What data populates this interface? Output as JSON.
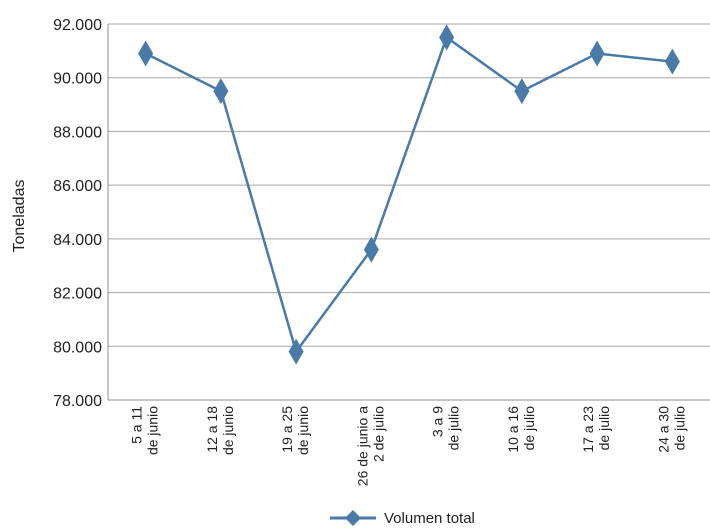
{
  "chart_data": {
    "type": "line",
    "ylabel": "Toneladas",
    "ylim": [
      78000,
      92000
    ],
    "yticks": [
      78000,
      80000,
      82000,
      84000,
      86000,
      88000,
      90000,
      92000
    ],
    "yticklabels": [
      "78.000",
      "80.000",
      "82.000",
      "84.000",
      "86.000",
      "88.000",
      "90.000",
      "92.000"
    ],
    "grid": true,
    "categories": [
      [
        "5 a 11",
        "de junio"
      ],
      [
        "12 a 18",
        "de junio"
      ],
      [
        "19 a 25",
        "de junio"
      ],
      [
        "26 de junio a",
        "2 de julio"
      ],
      [
        "3 a 9",
        "de julio"
      ],
      [
        "10 a 16",
        "de julio"
      ],
      [
        "17 a 23",
        "de julio"
      ],
      [
        "24 a 30",
        "de julio"
      ]
    ],
    "series": [
      {
        "name": "Volumen total",
        "values": [
          90900,
          89500,
          79800,
          83600,
          91500,
          89500,
          90900,
          90600
        ]
      }
    ],
    "legend_position": "bottom",
    "colors": {
      "series": "#4a7aa8",
      "grid": "#a6a6a6",
      "axis": "#8c8c8c"
    }
  }
}
